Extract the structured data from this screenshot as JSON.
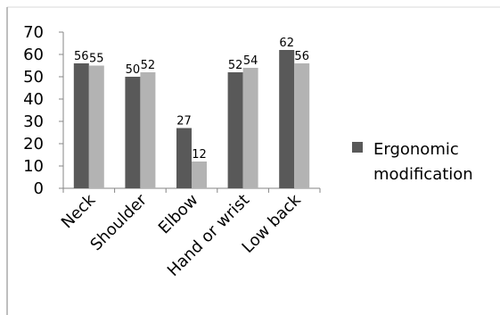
{
  "chart_data": {
    "type": "bar",
    "categories": [
      "Neck",
      "Shoulder",
      "Elbow",
      "Hand or wrist",
      "Low back"
    ],
    "series": [
      {
        "name": "Ergonomic modification",
        "values": [
          56,
          50,
          27,
          52,
          62
        ],
        "color": "#595959"
      },
      {
        "name": "",
        "values": [
          55,
          52,
          12,
          54,
          56
        ],
        "color": "#b3b3b3"
      }
    ],
    "ylim": [
      0,
      70
    ],
    "yticks": [
      "0",
      "10",
      "20",
      "30",
      "40",
      "50",
      "60",
      "70"
    ],
    "legend": {
      "position": "right",
      "lines": [
        "Ergonomic",
        "modification"
      ]
    },
    "grid": false,
    "title": "",
    "xlabel": "",
    "ylabel": ""
  }
}
